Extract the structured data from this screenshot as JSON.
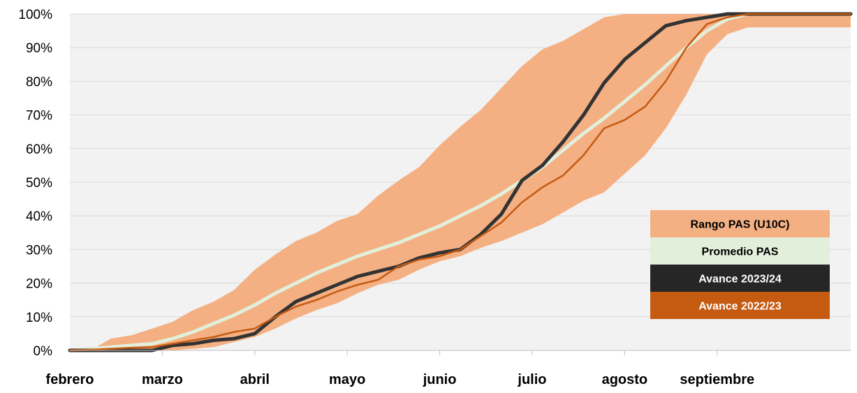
{
  "chart_data": {
    "type": "area",
    "y_axis": {
      "ticks": [
        "0%",
        "10%",
        "20%",
        "30%",
        "40%",
        "50%",
        "60%",
        "70%",
        "80%",
        "90%",
        "100%"
      ],
      "range": [
        0,
        100
      ]
    },
    "x_axis": {
      "range": [
        0,
        38
      ],
      "months": [
        {
          "label": "febrero",
          "pos": 0
        },
        {
          "label": "marzo",
          "pos": 4.5
        },
        {
          "label": "abril",
          "pos": 9
        },
        {
          "label": "mayo",
          "pos": 13.5
        },
        {
          "label": "junio",
          "pos": 18
        },
        {
          "label": "julio",
          "pos": 22.5
        },
        {
          "label": "agosto",
          "pos": 27
        },
        {
          "label": "septiembre",
          "pos": 31.5
        }
      ]
    },
    "series": [
      {
        "name": "Rango PAS (U10C)",
        "kind": "band",
        "color": "#f4b083",
        "x": [
          0,
          1,
          2,
          3,
          4,
          5,
          6,
          7,
          8,
          9,
          10,
          11,
          12,
          13,
          14,
          15,
          16,
          17,
          18,
          19,
          20,
          21,
          22,
          23,
          24,
          25,
          26,
          27,
          28,
          29,
          30,
          31,
          32,
          33,
          34,
          35,
          36,
          37,
          38
        ],
        "lower": [
          0,
          0,
          0,
          0,
          0,
          0,
          0.5,
          1,
          2.5,
          4,
          6.5,
          9.5,
          12,
          14,
          17,
          19.5,
          21,
          24,
          26.5,
          28,
          30.5,
          32.5,
          35,
          37.5,
          41,
          44.5,
          47,
          52.5,
          58,
          66,
          76,
          88,
          94,
          96,
          96,
          96,
          96,
          96,
          96
        ],
        "upper": [
          0,
          0,
          3.5,
          4.5,
          6.5,
          8.5,
          12,
          14.5,
          18,
          24,
          28.5,
          32.5,
          35,
          38.5,
          40.5,
          46,
          50.5,
          54.5,
          61,
          66.5,
          71.5,
          78,
          84.5,
          89.5,
          92,
          95.5,
          99,
          100,
          100,
          100,
          100,
          100,
          100,
          100,
          100,
          100,
          100,
          100,
          100
        ]
      },
      {
        "name": "Promedio PAS",
        "kind": "line",
        "color": "#e2efda",
        "x": [
          0,
          1,
          2,
          3,
          4,
          5,
          6,
          7,
          8,
          9,
          10,
          11,
          12,
          13,
          14,
          15,
          16,
          17,
          18,
          19,
          20,
          21,
          22,
          23,
          24,
          25,
          26,
          27,
          28,
          29,
          30,
          31,
          32,
          33,
          34,
          35,
          36,
          37,
          38
        ],
        "y": [
          0,
          0.5,
          1,
          1.5,
          2,
          3.5,
          5.5,
          8,
          10.5,
          13.5,
          17,
          20,
          23,
          25.5,
          28,
          30,
          32,
          34.5,
          37,
          40,
          43,
          46.5,
          50.5,
          54.5,
          59.5,
          64.5,
          69,
          74,
          79,
          84.5,
          90,
          95,
          98.5,
          100,
          100,
          100,
          100,
          100,
          100
        ]
      },
      {
        "name": "Avance 2023/24",
        "kind": "line",
        "color": "#333333",
        "x": [
          0,
          1,
          2,
          3,
          4,
          5,
          6,
          7,
          8,
          9,
          10,
          11,
          12,
          13,
          14,
          15,
          16,
          17,
          18,
          19,
          20,
          21,
          22,
          23,
          24,
          25,
          26,
          27,
          28,
          29,
          30,
          31,
          32,
          33,
          34,
          35,
          36,
          37,
          38
        ],
        "y": [
          0,
          0,
          0,
          0,
          0,
          1.5,
          2,
          3,
          3.5,
          5,
          10,
          14.5,
          17,
          19.5,
          22,
          23.5,
          25,
          27.5,
          29,
          30,
          34.5,
          40.5,
          50.5,
          55,
          62,
          70,
          79.5,
          86.5,
          91.5,
          96.5,
          98,
          99,
          100,
          100,
          100,
          100,
          100,
          100,
          100
        ]
      },
      {
        "name": "Avance 2022/23",
        "kind": "line",
        "color": "#c55a11",
        "x": [
          0,
          1,
          2,
          3,
          4,
          5,
          6,
          7,
          8,
          9,
          10,
          11,
          12,
          13,
          14,
          15,
          16,
          17,
          18,
          19,
          20,
          21,
          22,
          23,
          24,
          25,
          26,
          27,
          28,
          29,
          30,
          31,
          32,
          33,
          34,
          35,
          36,
          37,
          38
        ],
        "y": [
          0,
          0.2,
          0.5,
          0.8,
          1,
          2,
          3,
          4,
          5.5,
          6.5,
          10,
          13,
          15,
          17.5,
          19.5,
          21,
          25,
          27,
          28,
          30,
          34,
          38,
          44,
          48.5,
          52,
          58,
          66,
          68.5,
          72.5,
          80,
          90,
          97,
          99,
          100,
          100,
          100,
          100,
          100,
          100
        ]
      }
    ],
    "legend": {
      "placement": "right",
      "entries": [
        {
          "label": "Rango PAS (U10C)",
          "bg": "#f4b083",
          "fg": "#000000"
        },
        {
          "label": "Promedio PAS",
          "bg": "#e2efda",
          "fg": "#000000"
        },
        {
          "label": "Avance 2023/24",
          "bg": "#262626",
          "fg": "#ffffff"
        },
        {
          "label": "Avance 2022/23",
          "bg": "#c55a11",
          "fg": "#ffffff"
        }
      ]
    },
    "grid": true,
    "background": "#f2f2f2"
  }
}
